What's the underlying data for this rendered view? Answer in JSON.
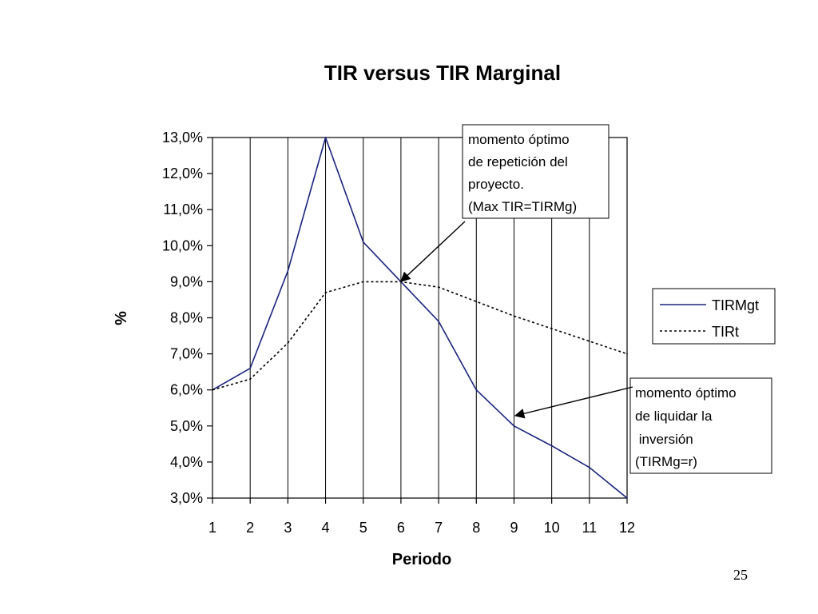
{
  "chart_data": {
    "type": "line",
    "title": "TIR versus TIR Marginal",
    "xlabel": "Periodo",
    "ylabel": "%",
    "categories": [
      "1",
      "2",
      "3",
      "4",
      "5",
      "6",
      "7",
      "8",
      "9",
      "10",
      "11",
      "12"
    ],
    "x": [
      1,
      2,
      3,
      4,
      5,
      6,
      7,
      8,
      9,
      10,
      11,
      12
    ],
    "ylim": [
      3.0,
      13.0
    ],
    "yticks": [
      "3,0%",
      "4,0%",
      "5,0%",
      "6,0%",
      "7,0%",
      "8,0%",
      "9,0%",
      "10,0%",
      "11,0%",
      "12,0%",
      "13,0%"
    ],
    "yticks_values": [
      3,
      4,
      5,
      6,
      7,
      8,
      9,
      10,
      11,
      12,
      13
    ],
    "grid": "vertical",
    "series": [
      {
        "name": "TIRMgt",
        "style": "solid",
        "color": "#1a237e",
        "values": [
          6.0,
          6.6,
          9.3,
          13.0,
          10.1,
          9.0,
          7.9,
          6.0,
          5.0,
          4.45,
          3.85,
          3.0
        ]
      },
      {
        "name": "TIRt",
        "style": "dotted",
        "color": "#000000",
        "values": [
          6.0,
          6.3,
          7.3,
          8.7,
          9.0,
          9.0,
          8.85,
          8.45,
          8.05,
          7.7,
          7.35,
          7.0
        ]
      }
    ],
    "legend": {
      "placement": "right"
    },
    "annotations": [
      {
        "lines": [
          "momento óptimo",
          "de repetición del",
          "proyecto.",
          "(Max TIR=TIRMg)"
        ],
        "points_to": {
          "x": 6,
          "y": 9.0
        }
      },
      {
        "lines": [
          "momento óptimo",
          "de liquidar la",
          " inversión",
          "(TIRMg=r)"
        ],
        "points_to": {
          "x": 9,
          "y": 5.0
        }
      }
    ]
  },
  "slide_number": "25"
}
